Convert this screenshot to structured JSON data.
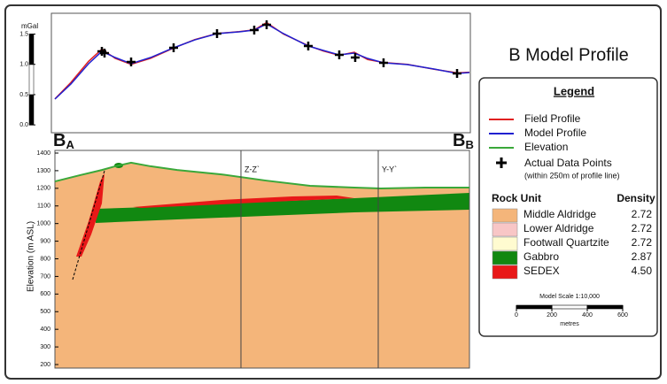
{
  "title": "B Model Profile",
  "profile_ends": [
    {
      "letter": "B",
      "sub": "A"
    },
    {
      "letter": "B",
      "sub": "B"
    }
  ],
  "chart_data": [
    {
      "type": "line",
      "y_label": "mGal",
      "xlim": [
        0,
        2340
      ],
      "ylim": [
        -0.1,
        1.8
      ],
      "yticks": [
        {
          "value": 0,
          "label": "0.0"
        },
        {
          "value": 0.5,
          "label": "0.5"
        },
        {
          "value": 1,
          "label": "1.0"
        },
        {
          "value": 1.5,
          "label": "1.5"
        }
      ],
      "x": [
        0,
        90,
        190,
        265,
        340,
        430,
        540,
        670,
        790,
        915,
        1040,
        1125,
        1195,
        1290,
        1430,
        1515,
        1605,
        1690,
        1765,
        1855,
        1990,
        2140,
        2270,
        2340
      ],
      "series": [
        {
          "name": "Field Profile",
          "color": "#e02020",
          "values": [
            0.43,
            0.7,
            1.05,
            1.25,
            1.1,
            1.0,
            1.1,
            1.27,
            1.41,
            1.51,
            1.54,
            1.57,
            1.69,
            1.5,
            1.31,
            1.22,
            1.15,
            1.2,
            1.08,
            1.03,
            1.0,
            0.92,
            0.86,
            0.87
          ]
        },
        {
          "name": "Model Profile",
          "color": "#2020d0",
          "values": [
            0.426,
            0.675,
            1.011,
            1.215,
            1.113,
            1.011,
            1.113,
            1.274,
            1.405,
            1.508,
            1.537,
            1.566,
            1.668,
            1.508,
            1.303,
            1.23,
            1.157,
            1.186,
            1.098,
            1.025,
            0.996,
            0.923,
            0.85,
            0.865
          ]
        },
        {
          "name": "Actual Data Points",
          "color": "#000000",
          "marker": "cross",
          "x": [
            265,
            280,
            430,
            670,
            915,
            1125,
            1195,
            1430,
            1605,
            1695,
            1855,
            2270
          ],
          "values": [
            1.215,
            1.186,
            1.04,
            1.274,
            1.508,
            1.566,
            1.654,
            1.303,
            1.157,
            1.113,
            1.025,
            0.85
          ]
        }
      ]
    },
    {
      "type": "area",
      "y_label": "Elevation (m ASL)",
      "xlim": [
        0,
        2340
      ],
      "ylim": [
        180,
        1415
      ],
      "yticks": [
        200,
        300,
        400,
        500,
        600,
        700,
        800,
        900,
        1000,
        1100,
        1200,
        1300,
        1400
      ],
      "x": [
        0,
        140,
        265,
        340,
        430,
        540,
        690,
        940,
        1190,
        1440,
        1690,
        1840,
        2090,
        2340
      ],
      "series": [
        {
          "name": "Elevation",
          "color": "#3aa83a",
          "values": [
            1239,
            1274,
            1304,
            1325,
            1345,
            1325,
            1304,
            1279,
            1244,
            1214,
            1204,
            1199,
            1204,
            1204
          ]
        }
      ],
      "sections": [
        {
          "x": 1050,
          "label": "Z-Z`"
        },
        {
          "x": 1825,
          "label": "Y-Y`"
        }
      ]
    }
  ],
  "legend": {
    "title": "Legend",
    "data_points_note": "(within 250m of profile line)",
    "unit_header": "Rock Unit",
    "density_header": "Density",
    "units": [
      {
        "name": "Middle Aldridge",
        "density": "2.72",
        "color": "#f4b57a"
      },
      {
        "name": "Lower Aldridge",
        "density": "2.72",
        "color": "#f8c6c6"
      },
      {
        "name": "Footwall Quartzite",
        "density": "2.72",
        "color": "#fffbd0"
      },
      {
        "name": "Gabbro",
        "density": "2.87",
        "color": "#118811"
      },
      {
        "name": "SEDEX",
        "density": "4.50",
        "color": "#e81818"
      }
    ],
    "scale": {
      "title": "Model Scale 1:10,000",
      "ticks": [
        0,
        200,
        400,
        600
      ],
      "unit": "metres"
    }
  }
}
